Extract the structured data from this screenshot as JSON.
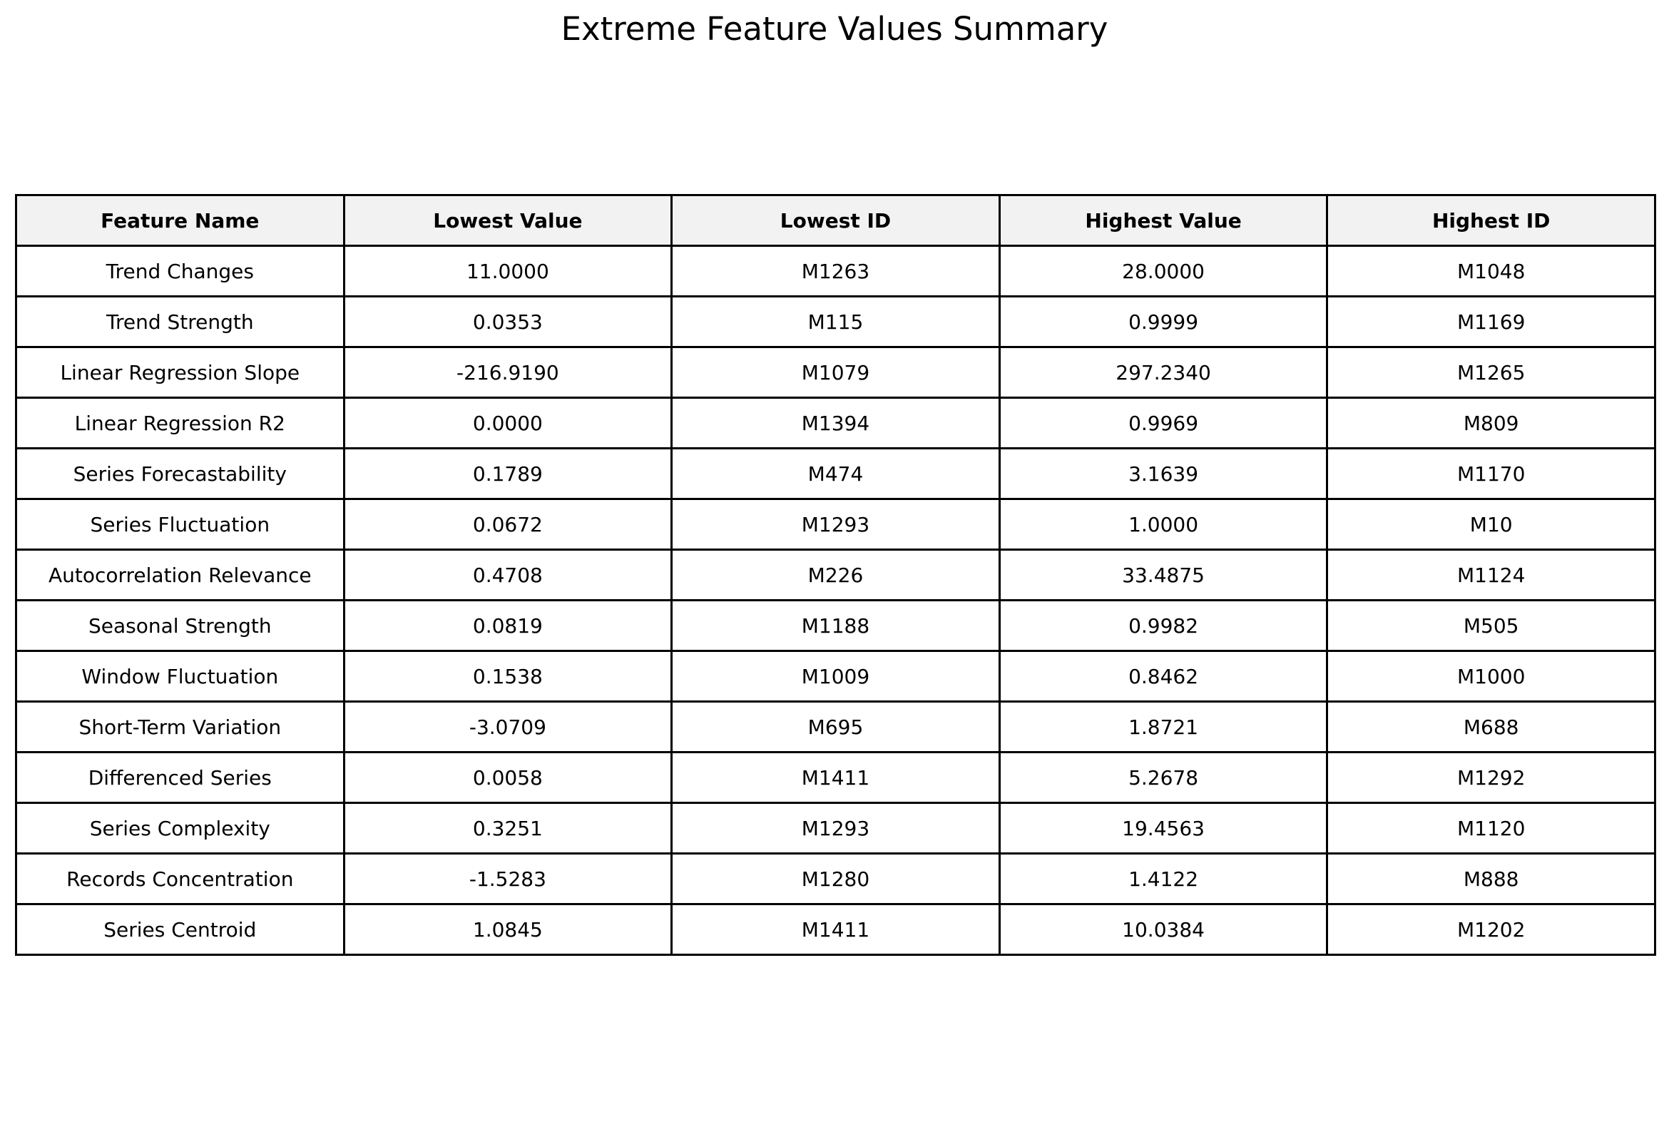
{
  "chart_data": {
    "type": "table",
    "title": "Extreme Feature Values Summary",
    "columns": [
      "Feature Name",
      "Lowest Value",
      "Lowest ID",
      "Highest Value",
      "Highest ID"
    ],
    "rows": [
      [
        "Trend Changes",
        "11.0000",
        "M1263",
        "28.0000",
        "M1048"
      ],
      [
        "Trend Strength",
        "0.0353",
        "M115",
        "0.9999",
        "M1169"
      ],
      [
        "Linear Regression Slope",
        "-216.9190",
        "M1079",
        "297.2340",
        "M1265"
      ],
      [
        "Linear Regression R2",
        "0.0000",
        "M1394",
        "0.9969",
        "M809"
      ],
      [
        "Series Forecastability",
        "0.1789",
        "M474",
        "3.1639",
        "M1170"
      ],
      [
        "Series Fluctuation",
        "0.0672",
        "M1293",
        "1.0000",
        "M10"
      ],
      [
        "Autocorrelation Relevance",
        "0.4708",
        "M226",
        "33.4875",
        "M1124"
      ],
      [
        "Seasonal Strength",
        "0.0819",
        "M1188",
        "0.9982",
        "M505"
      ],
      [
        "Window Fluctuation",
        "0.1538",
        "M1009",
        "0.8462",
        "M1000"
      ],
      [
        "Short-Term Variation",
        "-3.0709",
        "M695",
        "1.8721",
        "M688"
      ],
      [
        "Differenced Series",
        "0.0058",
        "M1411",
        "5.2678",
        "M1292"
      ],
      [
        "Series Complexity",
        "0.3251",
        "M1293",
        "19.4563",
        "M1120"
      ],
      [
        "Records Concentration",
        "-1.5283",
        "M1280",
        "1.4122",
        "M888"
      ],
      [
        "Series Centroid",
        "1.0845",
        "M1411",
        "10.0384",
        "M1202"
      ]
    ],
    "header_background": "#f2f2f2",
    "cell_background": "#ffffff",
    "border_color": "#000000"
  }
}
